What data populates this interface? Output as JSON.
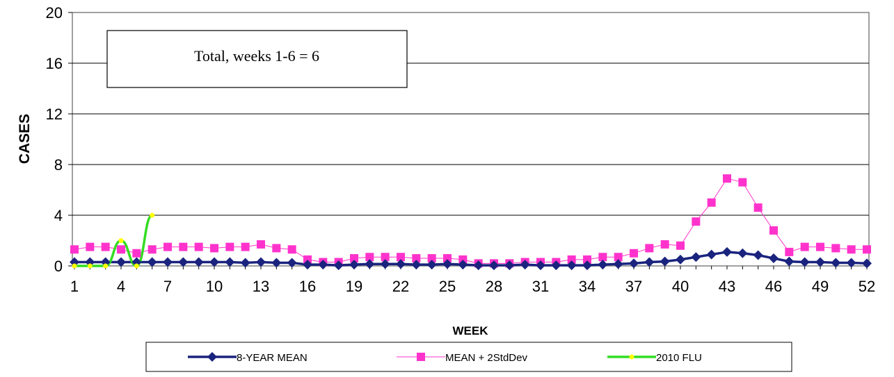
{
  "chart_data": {
    "type": "line",
    "title": "",
    "xlabel": "WEEK",
    "ylabel": "CASES",
    "xlim": [
      1,
      52
    ],
    "ylim": [
      0,
      20
    ],
    "x_ticks": [
      1,
      4,
      7,
      10,
      13,
      16,
      19,
      22,
      25,
      28,
      31,
      34,
      37,
      40,
      43,
      46,
      49,
      52
    ],
    "y_ticks": [
      0,
      4,
      8,
      12,
      16,
      20
    ],
    "grid": "horizontal",
    "legend_position": "bottom",
    "annotation": "Total, weeks 1-6 = 6",
    "series": [
      {
        "name": "8-YEAR MEAN",
        "color": "#1a237e",
        "marker": "diamond",
        "x": [
          1,
          2,
          3,
          4,
          5,
          6,
          7,
          8,
          9,
          10,
          11,
          12,
          13,
          14,
          15,
          16,
          17,
          18,
          19,
          20,
          21,
          22,
          23,
          24,
          25,
          26,
          27,
          28,
          29,
          30,
          31,
          32,
          33,
          34,
          35,
          36,
          37,
          38,
          39,
          40,
          41,
          42,
          43,
          44,
          45,
          46,
          47,
          48,
          49,
          50,
          51,
          52
        ],
        "values": [
          0.3,
          0.3,
          0.3,
          0.3,
          0.3,
          0.3,
          0.3,
          0.3,
          0.3,
          0.3,
          0.3,
          0.25,
          0.3,
          0.25,
          0.25,
          0.1,
          0.1,
          0.05,
          0.1,
          0.15,
          0.15,
          0.15,
          0.1,
          0.1,
          0.15,
          0.1,
          0.05,
          0.05,
          0.05,
          0.1,
          0.05,
          0.05,
          0.05,
          0.05,
          0.1,
          0.15,
          0.2,
          0.3,
          0.35,
          0.5,
          0.7,
          0.9,
          1.1,
          1.0,
          0.85,
          0.6,
          0.35,
          0.3,
          0.3,
          0.25,
          0.25,
          0.2
        ]
      },
      {
        "name": "MEAN + 2StdDev",
        "color": "#ff33cc",
        "marker": "square",
        "x": [
          1,
          2,
          3,
          4,
          5,
          6,
          7,
          8,
          9,
          10,
          11,
          12,
          13,
          14,
          15,
          16,
          17,
          18,
          19,
          20,
          21,
          22,
          23,
          24,
          25,
          26,
          27,
          28,
          29,
          30,
          31,
          32,
          33,
          34,
          35,
          36,
          37,
          38,
          39,
          40,
          41,
          42,
          43,
          44,
          45,
          46,
          47,
          48,
          49,
          50,
          51,
          52
        ],
        "values": [
          1.3,
          1.5,
          1.5,
          1.3,
          1.0,
          1.3,
          1.5,
          1.5,
          1.5,
          1.4,
          1.5,
          1.5,
          1.7,
          1.4,
          1.3,
          0.5,
          0.3,
          0.3,
          0.6,
          0.7,
          0.7,
          0.7,
          0.6,
          0.6,
          0.6,
          0.5,
          0.2,
          0.2,
          0.2,
          0.3,
          0.3,
          0.3,
          0.5,
          0.5,
          0.7,
          0.7,
          1.0,
          1.4,
          1.7,
          1.6,
          3.5,
          5.0,
          6.9,
          6.6,
          4.6,
          2.8,
          1.1,
          1.5,
          1.5,
          1.4,
          1.3,
          1.3
        ]
      },
      {
        "name": "2010 FLU",
        "color": "#33dd22",
        "marker": "circle",
        "marker_color": "#ffff00",
        "x": [
          1,
          2,
          3,
          4,
          5,
          6
        ],
        "values": [
          0,
          0,
          0,
          2,
          0,
          4
        ]
      }
    ]
  }
}
